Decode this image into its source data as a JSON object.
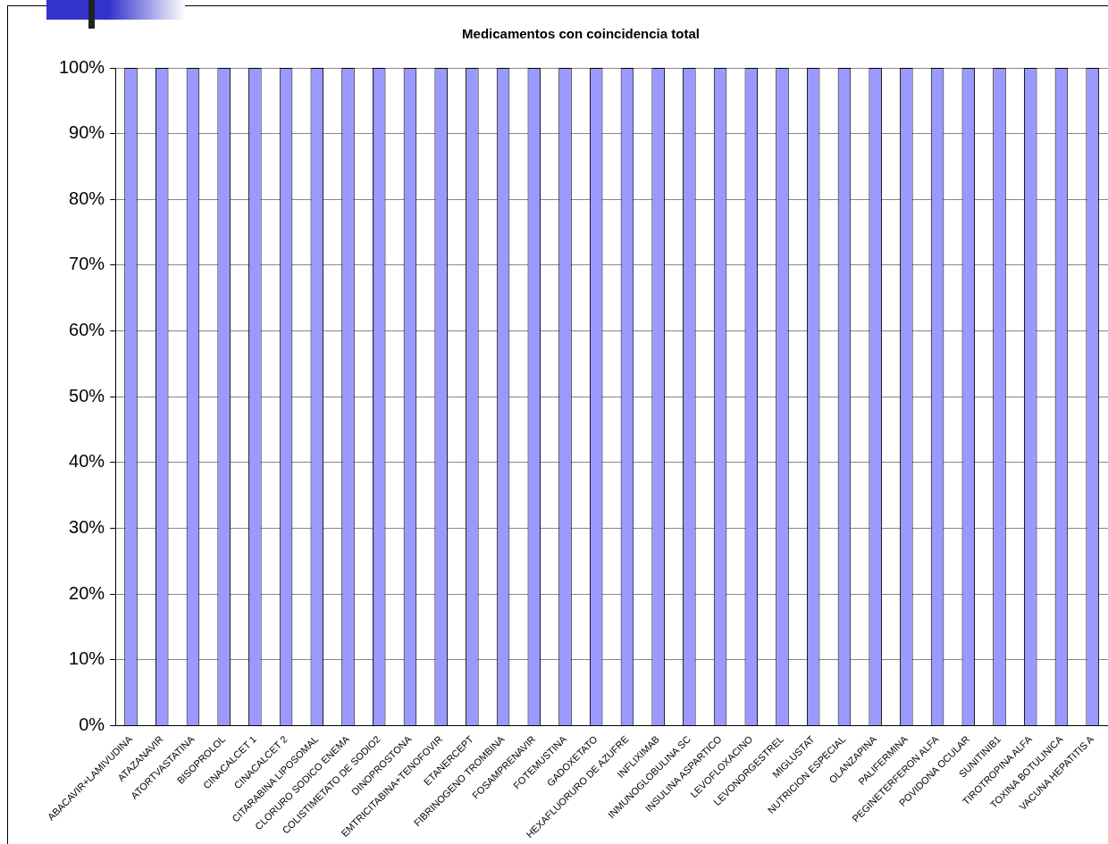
{
  "chart_data": {
    "type": "bar",
    "title": "Medicamentos con coincidencia total",
    "categories": [
      "ABACAVIR+LAMIVUDINA",
      "ATAZANAVIR",
      "ATORTVASTATINA",
      "BISOPROLOL",
      "CINACALCET 1",
      "CINACALCET 2",
      "CITARABINA LIPOSOMAL",
      "CLORURO SODICO ENEMA",
      "COLISTIMETATO DE SODIO2",
      "DINOPROSTONA",
      "EMTRICITABINA+TENOFOVIR",
      "ETANERCEPT",
      "FIBRINOGENO TROMBINA",
      "FOSAMPRENAVIR",
      "FOTEMUSTINA",
      "GADOXETATO",
      "HEXAFLUORURO DE AZUFRE",
      "INFLIXIMAB",
      "INMUNOGLOBULINA SC",
      "INSULINA ASPARTICO",
      "LEVOFLOXACINO",
      "LEVONORGESTREL",
      "MIGLUSTAT",
      "NUTRICION ESPECIAL",
      "OLANZAPINA",
      "PALIFERMINA",
      "PEGINETERFERON ALFA",
      "POVIDONA OCULAR",
      "SUNITINIB1",
      "TIROTROPINA ALFA",
      "TOXINA BOTULINICA",
      "VACUNA HEPATITIS A"
    ],
    "values": [
      100,
      100,
      100,
      100,
      100,
      100,
      100,
      100,
      100,
      100,
      100,
      100,
      100,
      100,
      100,
      100,
      100,
      100,
      100,
      100,
      100,
      100,
      100,
      100,
      100,
      100,
      100,
      100,
      100,
      100,
      100,
      100
    ],
    "color": "#9999ff",
    "ylim": [
      0,
      100
    ],
    "yticks": [
      {
        "value": 0,
        "label": "0%"
      },
      {
        "value": 10,
        "label": "10%"
      },
      {
        "value": 20,
        "label": "20%"
      },
      {
        "value": 30,
        "label": "30%"
      },
      {
        "value": 40,
        "label": "40%"
      },
      {
        "value": 50,
        "label": "50%"
      },
      {
        "value": 60,
        "label": "60%"
      },
      {
        "value": 70,
        "label": "70%"
      },
      {
        "value": 80,
        "label": "80%"
      },
      {
        "value": 90,
        "label": "90%"
      },
      {
        "value": 100,
        "label": "100%"
      }
    ],
    "grid": "y",
    "legend": false
  }
}
